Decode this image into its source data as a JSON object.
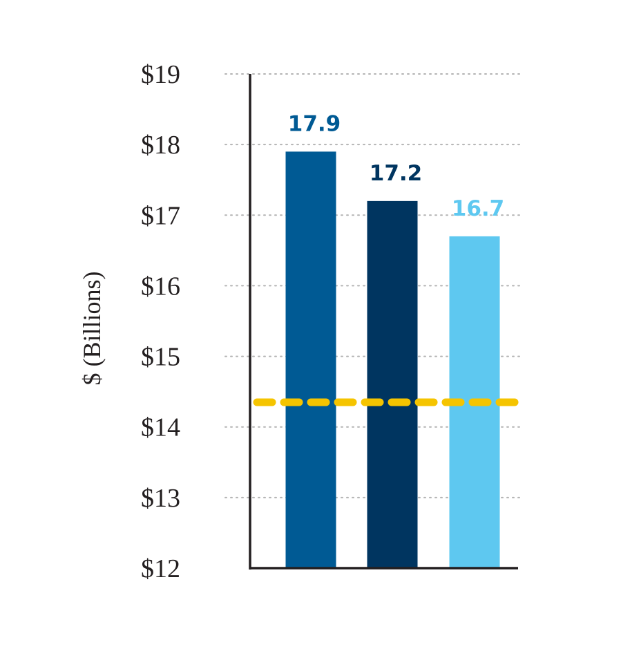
{
  "chart_data": {
    "type": "bar",
    "categories": [
      "",
      "",
      ""
    ],
    "values": [
      17.9,
      17.2,
      16.7
    ],
    "data_labels": [
      "17.9",
      "17.2",
      "16.7"
    ],
    "bar_colors": [
      "#005a94",
      "#003560",
      "#5ec8f0"
    ],
    "ylabel": "$ (Billions)",
    "ylim": [
      12,
      19
    ],
    "yticks": [
      12,
      13,
      14,
      15,
      16,
      17,
      18,
      19
    ],
    "ytick_labels": [
      "$12",
      "$13",
      "$14",
      "$15",
      "$16",
      "$17",
      "$18",
      "$19"
    ],
    "grid": true,
    "grid_style": "dotted",
    "reference_line": {
      "value": 14.35,
      "style": "dashed",
      "color": "#f5c400"
    },
    "axis_color": "#231f20",
    "grid_color": "#b3b3b3"
  }
}
